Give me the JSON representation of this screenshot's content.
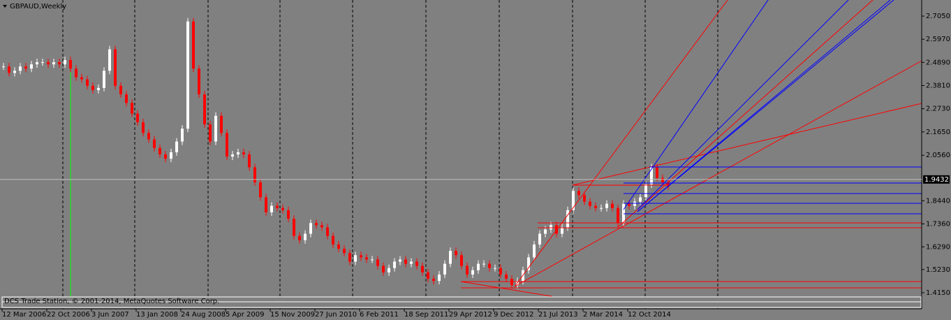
{
  "chart_data": {
    "type": "candlestick",
    "title": "GBPAUD,Weekly",
    "footer": "DCS Trade Station, © 2001-2014, MetaQuotes Software Corp.",
    "up_color": "#ffffff",
    "down_color": "#ff0000",
    "categories": [
      "12 Mar 2006",
      null,
      null,
      null,
      null,
      null,
      null,
      null,
      "22 Oct 2006",
      null,
      null,
      null,
      null,
      null,
      null,
      null,
      "3 Jun 2007",
      null,
      null,
      null,
      null,
      null,
      null,
      null,
      "13 Jan 2008",
      null,
      null,
      null,
      null,
      null,
      null,
      null,
      "24 Aug 2008",
      null,
      null,
      null,
      null,
      null,
      null,
      null,
      "5 Apr 2009",
      null,
      null,
      null,
      null,
      null,
      null,
      null,
      "15 Nov 2009",
      null,
      null,
      null,
      null,
      null,
      null,
      null,
      "27 Jun 2010",
      null,
      null,
      null,
      null,
      null,
      null,
      null,
      "6 Feb 2011",
      null,
      null,
      null,
      null,
      null,
      null,
      null,
      "18 Sep 2011",
      null,
      null,
      null,
      null,
      null,
      null,
      null,
      "29 Apr 2012",
      null,
      null,
      null,
      null,
      null,
      null,
      null,
      "9 Dec 2012",
      null,
      null,
      null,
      null,
      null,
      null,
      null,
      "21 Jul 2013",
      null,
      null,
      null,
      null,
      null,
      null,
      null,
      "2 Mar 2014",
      null,
      null,
      null,
      null,
      null,
      null,
      null,
      "12 Oct 2014",
      null,
      null,
      null,
      null,
      null,
      null,
      null
    ],
    "values": [
      2.47,
      2.44,
      2.45,
      2.47,
      2.46,
      2.48,
      2.49,
      2.49,
      2.48,
      2.49,
      2.48,
      2.5,
      2.46,
      2.42,
      2.41,
      2.38,
      2.36,
      2.37,
      2.45,
      2.55,
      2.38,
      2.34,
      2.3,
      2.25,
      2.21,
      2.16,
      2.13,
      2.09,
      2.06,
      2.04,
      2.07,
      2.12,
      2.18,
      2.68,
      2.46,
      2.34,
      2.2,
      2.12,
      2.24,
      2.16,
      2.05,
      2.06,
      2.07,
      2.06,
      2.0,
      1.93,
      1.86,
      1.79,
      1.82,
      1.81,
      1.8,
      1.76,
      1.68,
      1.66,
      1.69,
      1.74,
      1.73,
      1.72,
      1.68,
      1.64,
      1.62,
      1.6,
      1.56,
      1.59,
      1.58,
      1.57,
      1.57,
      1.54,
      1.51,
      1.53,
      1.56,
      1.57,
      1.55,
      1.56,
      1.54,
      1.51,
      1.48,
      1.47,
      1.5,
      1.55,
      1.61,
      1.59,
      1.54,
      1.5,
      1.52,
      1.55,
      1.55,
      1.53,
      1.53,
      1.5,
      1.48,
      1.45,
      1.47,
      1.52,
      1.58,
      1.64,
      1.69,
      1.71,
      1.73,
      1.69,
      1.72,
      1.8,
      1.89,
      1.87,
      1.84,
      1.82,
      1.81,
      1.81,
      1.83,
      1.81,
      1.74,
      1.83,
      1.82,
      1.84,
      1.86,
      1.92,
      2.0,
      1.95,
      1.93,
      1.91
    ],
    "ylim": [
      1.34,
      2.78
    ],
    "yticks": [
      {
        "value": 2.705,
        "label": "2.7050"
      },
      {
        "value": 2.597,
        "label": "2.5970"
      },
      {
        "value": 2.489,
        "label": "2.4890"
      },
      {
        "value": 2.381,
        "label": "2.3810"
      },
      {
        "value": 2.273,
        "label": "2.2730"
      },
      {
        "value": 2.165,
        "label": "2.1650"
      },
      {
        "value": 2.056,
        "label": "2.0560"
      },
      {
        "value": 1.844,
        "label": "1.8440"
      },
      {
        "value": 1.736,
        "label": "1.7360"
      },
      {
        "value": 1.629,
        "label": "1.6290"
      },
      {
        "value": 1.523,
        "label": "1.5230"
      },
      {
        "value": 1.415,
        "label": "1.4150"
      }
    ],
    "current_price": 1.9432
  }
}
